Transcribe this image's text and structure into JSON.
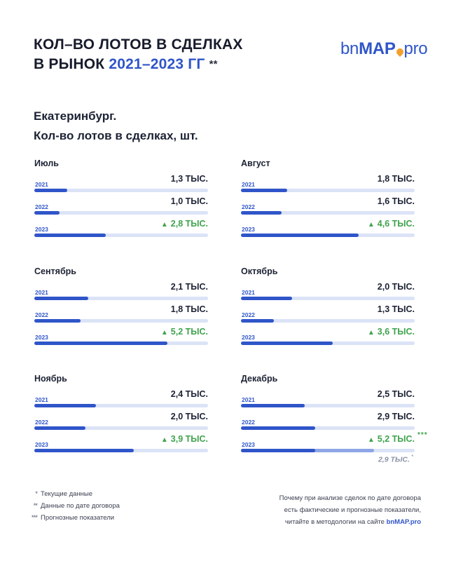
{
  "header": {
    "title_line1": "КОЛ–ВО ЛОТОВ В СДЕЛКАХ",
    "title_line2_prefix": "В РЫНОК",
    "title_line2_accent": "2021–2023 ГГ",
    "title_line2_suffix": "**",
    "logo_prefix": "bn",
    "logo_main": "MAP",
    "logo_suffix": "pro",
    "subtitle_line1": "Екатеринбург.",
    "subtitle_line2": "Кол-во лотов в сделках, шт."
  },
  "labels": {
    "year_2021": "2021",
    "year_2022": "2022",
    "year_2023": "2023"
  },
  "chart_data": {
    "type": "bar",
    "orientation": "horizontal",
    "units": "тыс. шт.",
    "panels": [
      {
        "month": "Июль",
        "values": [
          {
            "year": "2021",
            "value": 1.3,
            "label": "1,3 ТЫС."
          },
          {
            "year": "2022",
            "value": 1.0,
            "label": "1,0 ТЫС."
          },
          {
            "year": "2023",
            "value": 2.8,
            "label": "2,8 ТЫС.",
            "up": true
          }
        ]
      },
      {
        "month": "Август",
        "values": [
          {
            "year": "2021",
            "value": 1.8,
            "label": "1,8 ТЫС."
          },
          {
            "year": "2022",
            "value": 1.6,
            "label": "1,6 ТЫС."
          },
          {
            "year": "2023",
            "value": 4.6,
            "label": "4,6 ТЫС.",
            "up": true
          }
        ]
      },
      {
        "month": "Сентябрь",
        "values": [
          {
            "year": "2021",
            "value": 2.1,
            "label": "2,1 ТЫС."
          },
          {
            "year": "2022",
            "value": 1.8,
            "label": "1,8 ТЫС."
          },
          {
            "year": "2023",
            "value": 5.2,
            "label": "5,2 ТЫС.",
            "up": true
          }
        ]
      },
      {
        "month": "Октябрь",
        "values": [
          {
            "year": "2021",
            "value": 2.0,
            "label": "2,0 ТЫС."
          },
          {
            "year": "2022",
            "value": 1.3,
            "label": "1,3 ТЫС."
          },
          {
            "year": "2023",
            "value": 3.6,
            "label": "3,6 ТЫС.",
            "up": true
          }
        ]
      },
      {
        "month": "Ноябрь",
        "values": [
          {
            "year": "2021",
            "value": 2.4,
            "label": "2,4 ТЫС."
          },
          {
            "year": "2022",
            "value": 2.0,
            "label": "2,0 ТЫС."
          },
          {
            "year": "2023",
            "value": 3.9,
            "label": "3,9 ТЫС.",
            "up": true
          }
        ]
      },
      {
        "month": "Декабрь",
        "values": [
          {
            "year": "2021",
            "value": 2.5,
            "label": "2,5 ТЫС."
          },
          {
            "year": "2022",
            "value": 2.9,
            "label": "2,9 ТЫС."
          },
          {
            "year": "2023",
            "value": 5.2,
            "label": "5,2 ТЫС.",
            "up": true,
            "mark": "***",
            "fact_value": 2.9,
            "fact_label": "2,9 ТЫС.",
            "fact_mark": "*"
          }
        ]
      }
    ],
    "colors": {
      "bar": "#2f55c9",
      "track": "#dbe3f6",
      "forecast": "#8ea6e6",
      "growth": "#3fa34d"
    }
  },
  "footer": {
    "legend": [
      {
        "symbol": "*",
        "text": "Текущие данные"
      },
      {
        "symbol": "**",
        "text": "Данные по дате договора"
      },
      {
        "symbol": "***",
        "text": "Прогнозные показатели"
      }
    ],
    "method_line1": "Почему при анализе сделок по дате договора",
    "method_line2": "есть фактические и прогнозные показатели,",
    "method_line3_prefix": "читайте в методологии на сайте",
    "method_site": "bnMAP.pro"
  }
}
